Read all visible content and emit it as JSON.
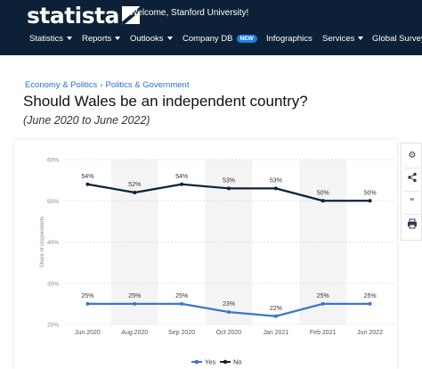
{
  "header": {
    "logo_text": "statista",
    "welcome": "Welcome, Stanford University!",
    "nav": [
      {
        "label": "Statistics",
        "dropdown": true
      },
      {
        "label": "Reports",
        "dropdown": true
      },
      {
        "label": "Outlooks",
        "dropdown": true
      },
      {
        "label": "Company DB",
        "dropdown": false,
        "badge": "NEW"
      },
      {
        "label": "Infographics",
        "dropdown": false
      },
      {
        "label": "Services",
        "dropdown": true
      },
      {
        "label": "Global Survey",
        "dropdown": false
      }
    ]
  },
  "breadcrumb": [
    "Economy & Politics",
    "Politics & Government"
  ],
  "page": {
    "title": "Should Wales be an independent country?",
    "subtitle": "(June 2020 to June 2022)"
  },
  "sidebar_tools": [
    "gear-icon",
    "share-icon",
    "quote-icon",
    "print-icon"
  ],
  "colors": {
    "header_bg": "#0c2137",
    "yes": "#3a78c9",
    "no": "#0f2236",
    "link": "#2a6fcf"
  },
  "chart_data": {
    "type": "line",
    "categories": [
      "Jun 2020",
      "Aug 2020",
      "Sep 2020",
      "Oct 2020",
      "Jan 2021",
      "Feb 2021",
      "Jun 2022"
    ],
    "series": [
      {
        "name": "Yes",
        "values": [
          25,
          25,
          25,
          23,
          22,
          25,
          25
        ],
        "labels": [
          "25%",
          "25%",
          "25%",
          "23%",
          "22%",
          "25%",
          "25%"
        ],
        "color": "#3a78c9"
      },
      {
        "name": "No",
        "values": [
          54,
          52,
          54,
          53,
          53,
          50,
          50
        ],
        "labels": [
          "54%",
          "52%",
          "54%",
          "53%",
          "53%",
          "50%",
          "50%"
        ],
        "color": "#0f2236"
      }
    ],
    "ylabel": "Share of respondents",
    "y_ticks": [
      "20%",
      "30%",
      "40%",
      "50%",
      "60%"
    ],
    "y_tick_values": [
      20,
      30,
      40,
      50,
      60
    ],
    "ylim": [
      20,
      60
    ],
    "grid": true,
    "legend_position": "bottom"
  }
}
